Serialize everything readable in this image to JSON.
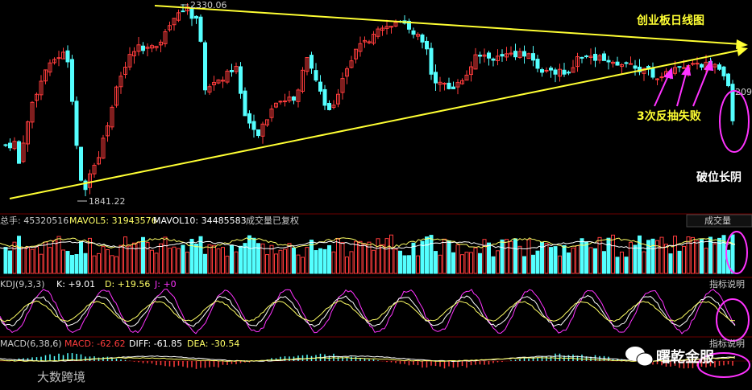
{
  "chart_data": [
    {
      "type": "candlestick",
      "title": "创业板日线图",
      "annotations": {
        "high_label": "2330.06",
        "low_label": "1841.22",
        "right_label": "209",
        "retest": "3次反抽失败",
        "breakdown": "破位长阴"
      },
      "high": 2330.06,
      "low": 1841.22
    },
    {
      "type": "bar",
      "name": "volume",
      "header": {
        "total": "总手: 45320516",
        "mavol5": "MAVOL5: 31943576",
        "mavol10": "MAVOL10: 34485583",
        "note": "成交量已复权",
        "button": "成交量"
      }
    },
    {
      "type": "line",
      "name": "KDJ",
      "header": {
        "label": "KDJ(9,3,3)",
        "k": "K: +9.01",
        "d": "D: +19.56",
        "j": "J: +0",
        "button": "指标说明"
      }
    },
    {
      "type": "bar",
      "name": "MACD",
      "header": {
        "label": "MACD(6,38,6)",
        "macd": "MACD: -62.62",
        "diff": "DIFF: -61.85",
        "dea": "DEA: -30.54",
        "button": "指标说明"
      }
    }
  ],
  "watermark": {
    "left": "大数跨境",
    "right": "曙乾金服"
  },
  "colors": {
    "up": "#ff3c3c",
    "down": "#54ffff",
    "trend": "#ffff33",
    "circle": "#ff33ff"
  }
}
